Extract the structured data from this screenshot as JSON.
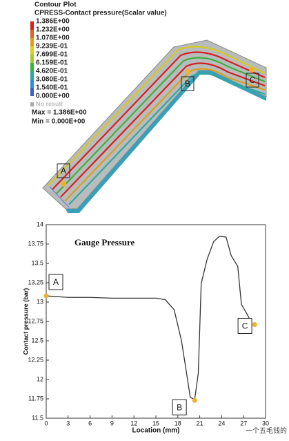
{
  "contour_plot": {
    "title": "Contour Plot",
    "subtitle": "CPRESS-Contact pressure(Scalar value)",
    "levels": [
      "1.386E+00",
      "1.232E+00",
      "1.078E+00",
      "9.239E-01",
      "7.699E-01",
      "6.159E-01",
      "4.620E-01",
      "3.080E-01",
      "1.540E-01",
      "0.000E+00"
    ],
    "colors": [
      "#d42020",
      "#e0602a",
      "#d9a020",
      "#d8d020",
      "#a8c830",
      "#40b040",
      "#30a8a0",
      "#3090d0",
      "#4060c0"
    ],
    "no_result": "No result",
    "max": "Max = 1.386E+00",
    "min": "Min = 0.000E+00",
    "points": [
      "A",
      "B",
      "C"
    ]
  },
  "chart_data": {
    "type": "line",
    "title": "Gauge Pressure",
    "xlabel": "Location (mm)",
    "ylabel": "Contact pressure (bar)",
    "x": [
      0,
      3,
      6,
      9,
      12,
      15,
      16.3,
      17.5,
      18.5,
      19.2,
      19.7,
      20.3,
      20.8,
      21.2,
      22,
      22.9,
      23.7,
      24.6,
      25.3,
      26.2,
      26.7,
      27.5,
      28
    ],
    "series": [
      {
        "color": "#333333",
        "values": [
          13.08,
          13.06,
          13.06,
          13.05,
          13.05,
          13.05,
          13.03,
          12.9,
          12.5,
          12.08,
          11.77,
          11.74,
          12.08,
          13.24,
          13.55,
          13.78,
          13.85,
          13.84,
          13.6,
          13.46,
          12.97,
          12.84,
          12.75
        ]
      }
    ],
    "xlim": [
      0,
      30
    ],
    "ylim": [
      11.5,
      14
    ],
    "xticks": [
      0,
      3,
      6,
      9,
      12,
      15,
      18,
      21,
      24,
      27,
      30
    ],
    "yticks": [
      11.5,
      11.75,
      12,
      12.25,
      12.5,
      12.75,
      13,
      13.25,
      13.5,
      13.75,
      14
    ],
    "annotations": [
      {
        "label": "A",
        "x": 0,
        "y": 13.08,
        "color": "#f0b030"
      },
      {
        "label": "B",
        "x": 20.3,
        "y": 11.73,
        "color": "#f0b030"
      },
      {
        "label": "C",
        "x": 28.5,
        "y": 12.71,
        "color": "#f0b030"
      }
    ]
  },
  "watermark": "一个五毛钱的"
}
